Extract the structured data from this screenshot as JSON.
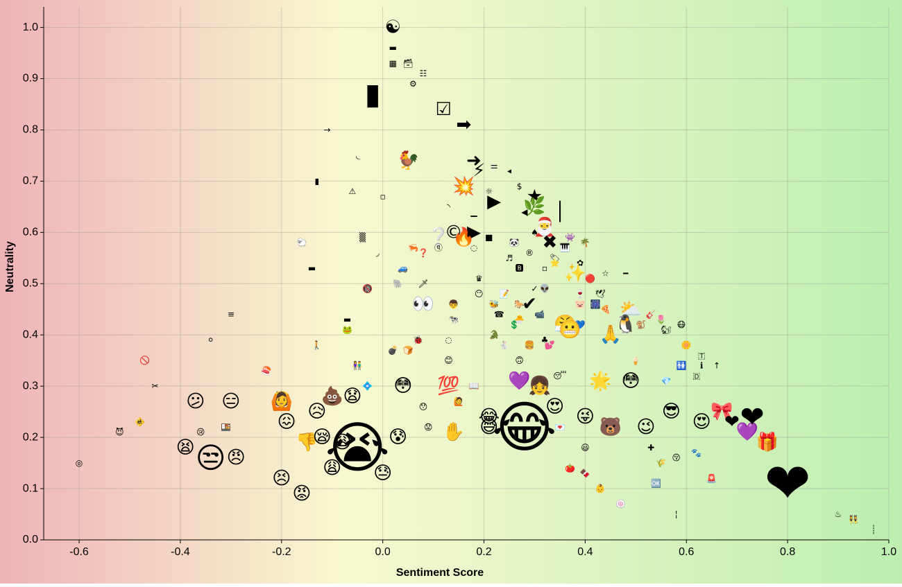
{
  "chart_data": {
    "type": "scatter",
    "title": "",
    "xlabel": "Sentiment Score",
    "ylabel": "Neutrality",
    "xlim": [
      -0.67,
      1.0
    ],
    "ylim": [
      0.0,
      1.04
    ],
    "xticks": [
      -0.6,
      -0.4,
      -0.2,
      0.0,
      0.2,
      0.4,
      0.6,
      0.8,
      1.0
    ],
    "xtick_labels": [
      "-0.6",
      "-0.4",
      "-0.2",
      "0.0",
      "0.2",
      "0.4",
      "0.6",
      "0.8",
      "1.0"
    ],
    "yticks": [
      0.0,
      0.1,
      0.2,
      0.3,
      0.4,
      0.5,
      0.6,
      0.7,
      0.8,
      0.9,
      1.0
    ],
    "ytick_labels": [
      "0.0",
      "0.1",
      "0.2",
      "0.3",
      "0.4",
      "0.5",
      "0.6",
      "0.7",
      "0.8",
      "0.9",
      "1.0"
    ],
    "grid": true,
    "legend": "none",
    "background_gradient": [
      "#efb3b8",
      "#f8f8d0",
      "#bdeeb0"
    ],
    "marker": "emoji, size proportional to usage frequency",
    "points": [
      {
        "x": 0.02,
        "y": 1.0,
        "emoji": "☯",
        "size": 2
      },
      {
        "x": 0.02,
        "y": 0.96,
        "emoji": "▬",
        "size": 1
      },
      {
        "x": 0.02,
        "y": 0.93,
        "emoji": "▦",
        "size": 1
      },
      {
        "x": 0.05,
        "y": 0.93,
        "emoji": "🗃",
        "size": 1
      },
      {
        "x": 0.08,
        "y": 0.91,
        "emoji": "☷",
        "size": 1
      },
      {
        "x": 0.06,
        "y": 0.89,
        "emoji": "⚙",
        "size": 1
      },
      {
        "x": -0.02,
        "y": 0.87,
        "emoji": "▮",
        "size": 3
      },
      {
        "x": 0.12,
        "y": 0.84,
        "emoji": "☑",
        "size": 2
      },
      {
        "x": 0.16,
        "y": 0.81,
        "emoji": "➡",
        "size": 2
      },
      {
        "x": -0.11,
        "y": 0.8,
        "emoji": "→",
        "size": 1
      },
      {
        "x": -0.05,
        "y": 0.75,
        "emoji": "◟",
        "size": 1
      },
      {
        "x": 0.05,
        "y": 0.74,
        "emoji": "🐓",
        "size": 2
      },
      {
        "x": 0.18,
        "y": 0.74,
        "emoji": "➜",
        "size": 2
      },
      {
        "x": 0.19,
        "y": 0.72,
        "emoji": "⚡",
        "size": 2
      },
      {
        "x": 0.22,
        "y": 0.73,
        "emoji": "⚌",
        "size": 1
      },
      {
        "x": 0.25,
        "y": 0.72,
        "emoji": "◂",
        "size": 1
      },
      {
        "x": -0.13,
        "y": 0.7,
        "emoji": "▮",
        "size": 1
      },
      {
        "x": 0.16,
        "y": 0.69,
        "emoji": "💥",
        "size": 2
      },
      {
        "x": 0.27,
        "y": 0.69,
        "emoji": "$",
        "size": 1
      },
      {
        "x": -0.06,
        "y": 0.68,
        "emoji": "⚠",
        "size": 1
      },
      {
        "x": 0.0,
        "y": 0.67,
        "emoji": "▫",
        "size": 1
      },
      {
        "x": 0.21,
        "y": 0.68,
        "emoji": "☼",
        "size": 1
      },
      {
        "x": 0.3,
        "y": 0.67,
        "emoji": "★",
        "size": 2
      },
      {
        "x": 0.22,
        "y": 0.66,
        "emoji": "▶",
        "size": 2
      },
      {
        "x": 0.3,
        "y": 0.65,
        "emoji": "🌿",
        "size": 2
      },
      {
        "x": 0.28,
        "y": 0.64,
        "emoji": "◀",
        "size": 1
      },
      {
        "x": 0.35,
        "y": 0.64,
        "emoji": "│",
        "size": 2
      },
      {
        "x": 0.13,
        "y": 0.65,
        "emoji": "◝",
        "size": 1
      },
      {
        "x": 0.18,
        "y": 0.64,
        "emoji": "▁",
        "size": 1
      },
      {
        "x": 0.14,
        "y": 0.6,
        "emoji": "©",
        "size": 2
      },
      {
        "x": 0.18,
        "y": 0.6,
        "emoji": "▶",
        "size": 2
      },
      {
        "x": 0.16,
        "y": 0.59,
        "emoji": "🔥",
        "size": 2
      },
      {
        "x": 0.11,
        "y": 0.59,
        "emoji": "❔",
        "size": 2
      },
      {
        "x": 0.21,
        "y": 0.59,
        "emoji": "■",
        "size": 1
      },
      {
        "x": 0.32,
        "y": 0.61,
        "emoji": "🎅",
        "size": 2
      },
      {
        "x": 0.3,
        "y": 0.6,
        "emoji": "♠",
        "size": 1
      },
      {
        "x": 0.33,
        "y": 0.58,
        "emoji": "✖",
        "size": 2
      },
      {
        "x": 0.37,
        "y": 0.59,
        "emoji": "👾",
        "size": 1
      },
      {
        "x": 0.4,
        "y": 0.58,
        "emoji": "🌴",
        "size": 1
      },
      {
        "x": 0.26,
        "y": 0.58,
        "emoji": "🐼",
        "size": 1
      },
      {
        "x": 0.29,
        "y": 0.56,
        "emoji": "®",
        "size": 1
      },
      {
        "x": 0.36,
        "y": 0.57,
        "emoji": "🎹",
        "size": 1
      },
      {
        "x": -0.16,
        "y": 0.58,
        "emoji": "🐑",
        "size": 1
      },
      {
        "x": -0.04,
        "y": 0.59,
        "emoji": "▒",
        "size": 1
      },
      {
        "x": -0.01,
        "y": 0.56,
        "emoji": "◞",
        "size": 1
      },
      {
        "x": 0.06,
        "y": 0.57,
        "emoji": "🦐",
        "size": 1
      },
      {
        "x": 0.08,
        "y": 0.56,
        "emoji": "❓",
        "size": 1
      },
      {
        "x": 0.11,
        "y": 0.57,
        "emoji": "ⓠ",
        "size": 1
      },
      {
        "x": 0.18,
        "y": 0.57,
        "emoji": "◌",
        "size": 1
      },
      {
        "x": 0.25,
        "y": 0.55,
        "emoji": "♬",
        "size": 1
      },
      {
        "x": 0.34,
        "y": 0.55,
        "emoji": "🏷",
        "size": 1
      },
      {
        "x": 0.34,
        "y": 0.54,
        "emoji": "⭐",
        "size": 1
      },
      {
        "x": 0.39,
        "y": 0.54,
        "emoji": "✿",
        "size": 1
      },
      {
        "x": 0.38,
        "y": 0.52,
        "emoji": "✨",
        "size": 2
      },
      {
        "x": 0.44,
        "y": 0.52,
        "emoji": "☆",
        "size": 1
      },
      {
        "x": 0.48,
        "y": 0.52,
        "emoji": "━",
        "size": 1
      },
      {
        "x": 0.27,
        "y": 0.53,
        "emoji": "🅱",
        "size": 1
      },
      {
        "x": 0.32,
        "y": 0.53,
        "emoji": "▫",
        "size": 1
      },
      {
        "x": 0.41,
        "y": 0.51,
        "emoji": "🔴",
        "size": 1
      },
      {
        "x": -0.14,
        "y": 0.53,
        "emoji": "▬",
        "size": 1
      },
      {
        "x": 0.04,
        "y": 0.53,
        "emoji": "🚙",
        "size": 1
      },
      {
        "x": -0.03,
        "y": 0.49,
        "emoji": "🔞",
        "size": 1
      },
      {
        "x": 0.03,
        "y": 0.5,
        "emoji": "🐘",
        "size": 1
      },
      {
        "x": 0.08,
        "y": 0.5,
        "emoji": "🗡",
        "size": 1
      },
      {
        "x": 0.19,
        "y": 0.51,
        "emoji": "♛",
        "size": 1
      },
      {
        "x": 0.24,
        "y": 0.48,
        "emoji": "📝",
        "size": 1
      },
      {
        "x": 0.3,
        "y": 0.49,
        "emoji": "✓",
        "size": 1
      },
      {
        "x": 0.32,
        "y": 0.49,
        "emoji": "👽",
        "size": 1
      },
      {
        "x": 0.39,
        "y": 0.48,
        "emoji": "🍷",
        "size": 1
      },
      {
        "x": 0.43,
        "y": 0.48,
        "emoji": "🕊",
        "size": 1
      },
      {
        "x": 0.19,
        "y": 0.48,
        "emoji": "😶",
        "size": 1
      },
      {
        "x": 0.22,
        "y": 0.46,
        "emoji": "🐝",
        "size": 1
      },
      {
        "x": 0.27,
        "y": 0.46,
        "emoji": "🐎",
        "size": 1
      },
      {
        "x": 0.29,
        "y": 0.46,
        "emoji": "✔",
        "size": 2
      },
      {
        "x": 0.39,
        "y": 0.46,
        "emoji": "🐷",
        "size": 1
      },
      {
        "x": 0.42,
        "y": 0.46,
        "emoji": "🎆",
        "size": 1
      },
      {
        "x": 0.44,
        "y": 0.45,
        "emoji": "🍕",
        "size": 1
      },
      {
        "x": 0.49,
        "y": 0.45,
        "emoji": "⛅",
        "size": 2
      },
      {
        "x": 0.08,
        "y": 0.46,
        "emoji": "👀",
        "size": 2
      },
      {
        "x": 0.14,
        "y": 0.46,
        "emoji": "👦",
        "size": 1
      },
      {
        "x": 0.23,
        "y": 0.44,
        "emoji": "☎",
        "size": 1
      },
      {
        "x": 0.27,
        "y": 0.43,
        "emoji": "🐣",
        "size": 1
      },
      {
        "x": 0.31,
        "y": 0.44,
        "emoji": "📹",
        "size": 1
      },
      {
        "x": -0.3,
        "y": 0.44,
        "emoji": "≡",
        "size": 1
      },
      {
        "x": -0.07,
        "y": 0.43,
        "emoji": "▬",
        "size": 1
      },
      {
        "x": 0.14,
        "y": 0.43,
        "emoji": "🐄",
        "size": 1
      },
      {
        "x": 0.26,
        "y": 0.42,
        "emoji": "💲",
        "size": 1
      },
      {
        "x": 0.36,
        "y": 0.42,
        "emoji": "😤",
        "size": 2
      },
      {
        "x": 0.39,
        "y": 0.42,
        "emoji": "💙",
        "size": 1
      },
      {
        "x": 0.48,
        "y": 0.42,
        "emoji": "🐧",
        "size": 2
      },
      {
        "x": 0.53,
        "y": 0.44,
        "emoji": "🎸",
        "size": 1
      },
      {
        "x": 0.55,
        "y": 0.43,
        "emoji": "🌷",
        "size": 1
      },
      {
        "x": -0.07,
        "y": 0.41,
        "emoji": "🐸",
        "size": 1
      },
      {
        "x": 0.07,
        "y": 0.39,
        "emoji": "🐞",
        "size": 1
      },
      {
        "x": 0.13,
        "y": 0.39,
        "emoji": "◌",
        "size": 1
      },
      {
        "x": 0.22,
        "y": 0.4,
        "emoji": "🐊",
        "size": 1
      },
      {
        "x": 0.32,
        "y": 0.39,
        "emoji": "♣",
        "size": 1
      },
      {
        "x": 0.37,
        "y": 0.41,
        "emoji": "😬",
        "size": 2
      },
      {
        "x": 0.45,
        "y": 0.4,
        "emoji": "🙏",
        "size": 2
      },
      {
        "x": 0.51,
        "y": 0.42,
        "emoji": "🐒",
        "size": 1
      },
      {
        "x": 0.59,
        "y": 0.42,
        "emoji": "😷",
        "size": 1
      },
      {
        "x": 0.56,
        "y": 0.41,
        "emoji": "🐿",
        "size": 1
      },
      {
        "x": -0.47,
        "y": 0.35,
        "emoji": "🚫",
        "size": 1
      },
      {
        "x": -0.34,
        "y": 0.39,
        "emoji": "⚪",
        "size": 1
      },
      {
        "x": -0.13,
        "y": 0.38,
        "emoji": "🚶",
        "size": 1
      },
      {
        "x": 0.02,
        "y": 0.37,
        "emoji": "💣",
        "size": 1
      },
      {
        "x": 0.05,
        "y": 0.37,
        "emoji": "🍞",
        "size": 1
      },
      {
        "x": 0.24,
        "y": 0.38,
        "emoji": "🐇",
        "size": 1
      },
      {
        "x": 0.29,
        "y": 0.38,
        "emoji": "🍔",
        "size": 1
      },
      {
        "x": 0.33,
        "y": 0.38,
        "emoji": "💕",
        "size": 1
      },
      {
        "x": 0.6,
        "y": 0.38,
        "emoji": "🌼",
        "size": 1
      },
      {
        "x": 0.63,
        "y": 0.36,
        "emoji": "🇹",
        "size": 1
      },
      {
        "x": 0.66,
        "y": 0.34,
        "emoji": "↑",
        "size": 1
      },
      {
        "x": -0.23,
        "y": 0.33,
        "emoji": "🍣",
        "size": 1
      },
      {
        "x": -0.05,
        "y": 0.34,
        "emoji": "👫",
        "size": 1
      },
      {
        "x": 0.13,
        "y": 0.35,
        "emoji": "😊",
        "size": 1
      },
      {
        "x": 0.27,
        "y": 0.35,
        "emoji": "🙃",
        "size": 1
      },
      {
        "x": 0.5,
        "y": 0.35,
        "emoji": "🍦",
        "size": 1
      },
      {
        "x": 0.59,
        "y": 0.34,
        "emoji": "🚻",
        "size": 1
      },
      {
        "x": 0.63,
        "y": 0.34,
        "emoji": "ℹ",
        "size": 1
      },
      {
        "x": -0.45,
        "y": 0.3,
        "emoji": "✂",
        "size": 1
      },
      {
        "x": 0.04,
        "y": 0.3,
        "emoji": "😳",
        "size": 2
      },
      {
        "x": 0.13,
        "y": 0.3,
        "emoji": "💯",
        "size": 2
      },
      {
        "x": 0.18,
        "y": 0.3,
        "emoji": "📖",
        "size": 1
      },
      {
        "x": 0.27,
        "y": 0.31,
        "emoji": "💜",
        "size": 2
      },
      {
        "x": 0.31,
        "y": 0.3,
        "emoji": "👧",
        "size": 2
      },
      {
        "x": 0.35,
        "y": 0.32,
        "emoji": "😴",
        "size": 1
      },
      {
        "x": 0.43,
        "y": 0.31,
        "emoji": "🌟",
        "size": 2
      },
      {
        "x": 0.49,
        "y": 0.31,
        "emoji": "😳",
        "size": 2
      },
      {
        "x": 0.56,
        "y": 0.31,
        "emoji": "💎",
        "size": 1
      },
      {
        "x": 0.62,
        "y": 0.32,
        "emoji": "🇩",
        "size": 1
      },
      {
        "x": -0.52,
        "y": 0.21,
        "emoji": "😈",
        "size": 1
      },
      {
        "x": -0.48,
        "y": 0.23,
        "emoji": "🚸",
        "size": 1
      },
      {
        "x": -0.6,
        "y": 0.15,
        "emoji": "◎",
        "size": 1
      },
      {
        "x": -0.37,
        "y": 0.27,
        "emoji": "😕",
        "size": 2
      },
      {
        "x": -0.3,
        "y": 0.27,
        "emoji": "😑",
        "size": 2
      },
      {
        "x": -0.2,
        "y": 0.27,
        "emoji": "🙆",
        "size": 2
      },
      {
        "x": -0.13,
        "y": 0.25,
        "emoji": "😥",
        "size": 2
      },
      {
        "x": -0.1,
        "y": 0.28,
        "emoji": "💩",
        "size": 2
      },
      {
        "x": -0.06,
        "y": 0.28,
        "emoji": "😧",
        "size": 2
      },
      {
        "x": -0.03,
        "y": 0.3,
        "emoji": "💠",
        "size": 1
      },
      {
        "x": 0.08,
        "y": 0.26,
        "emoji": "😯",
        "size": 1
      },
      {
        "x": 0.15,
        "y": 0.27,
        "emoji": "🙋",
        "size": 1
      },
      {
        "x": 0.21,
        "y": 0.24,
        "emoji": "😂",
        "size": 2
      },
      {
        "x": 0.28,
        "y": 0.22,
        "emoji": "😂",
        "size": 4
      },
      {
        "x": 0.34,
        "y": 0.26,
        "emoji": "😍",
        "size": 2
      },
      {
        "x": 0.4,
        "y": 0.24,
        "emoji": "😜",
        "size": 2
      },
      {
        "x": 0.45,
        "y": 0.22,
        "emoji": "🐻",
        "size": 2
      },
      {
        "x": 0.52,
        "y": 0.22,
        "emoji": "😉",
        "size": 2
      },
      {
        "x": 0.57,
        "y": 0.25,
        "emoji": "😎",
        "size": 2
      },
      {
        "x": 0.63,
        "y": 0.23,
        "emoji": "😍",
        "size": 2
      },
      {
        "x": 0.67,
        "y": 0.25,
        "emoji": "🎀",
        "size": 2
      },
      {
        "x": 0.69,
        "y": 0.23,
        "emoji": "❤",
        "size": 2
      },
      {
        "x": 0.72,
        "y": 0.21,
        "emoji": "💜",
        "size": 2
      },
      {
        "x": 0.73,
        "y": 0.24,
        "emoji": "❤",
        "size": 3
      },
      {
        "x": 0.76,
        "y": 0.19,
        "emoji": "🎁",
        "size": 2
      },
      {
        "x": 0.8,
        "y": 0.11,
        "emoji": "❤",
        "size": 4
      },
      {
        "x": -0.36,
        "y": 0.21,
        "emoji": "😢",
        "size": 1
      },
      {
        "x": -0.31,
        "y": 0.22,
        "emoji": "🍱",
        "size": 1
      },
      {
        "x": -0.19,
        "y": 0.23,
        "emoji": "😖",
        "size": 2
      },
      {
        "x": -0.15,
        "y": 0.19,
        "emoji": "👎",
        "size": 2
      },
      {
        "x": -0.12,
        "y": 0.2,
        "emoji": "😪",
        "size": 2
      },
      {
        "x": -0.08,
        "y": 0.19,
        "emoji": "😩",
        "size": 2
      },
      {
        "x": -0.05,
        "y": 0.18,
        "emoji": "😭",
        "size": 4
      },
      {
        "x": 0.03,
        "y": 0.2,
        "emoji": "😰",
        "size": 2
      },
      {
        "x": 0.09,
        "y": 0.22,
        "emoji": "😟",
        "size": 1
      },
      {
        "x": 0.14,
        "y": 0.21,
        "emoji": "✋",
        "size": 2
      },
      {
        "x": 0.21,
        "y": 0.22,
        "emoji": "😅",
        "size": 2
      },
      {
        "x": 0.35,
        "y": 0.22,
        "emoji": "💌",
        "size": 1
      },
      {
        "x": -0.39,
        "y": 0.18,
        "emoji": "😫",
        "size": 2
      },
      {
        "x": -0.34,
        "y": 0.16,
        "emoji": "😒",
        "size": 3
      },
      {
        "x": -0.29,
        "y": 0.16,
        "emoji": "😠",
        "size": 2
      },
      {
        "x": -0.2,
        "y": 0.12,
        "emoji": "😣",
        "size": 2
      },
      {
        "x": -0.16,
        "y": 0.09,
        "emoji": "😡",
        "size": 2
      },
      {
        "x": -0.1,
        "y": 0.14,
        "emoji": "😩",
        "size": 2
      },
      {
        "x": 0.0,
        "y": 0.13,
        "emoji": "😓",
        "size": 2
      },
      {
        "x": 0.4,
        "y": 0.18,
        "emoji": "😃",
        "size": 1
      },
      {
        "x": 0.53,
        "y": 0.18,
        "emoji": "✚",
        "size": 1
      },
      {
        "x": 0.58,
        "y": 0.16,
        "emoji": "😚",
        "size": 1
      },
      {
        "x": 0.62,
        "y": 0.17,
        "emoji": "🐾",
        "size": 1
      },
      {
        "x": 0.37,
        "y": 0.14,
        "emoji": "🍅",
        "size": 1
      },
      {
        "x": 0.4,
        "y": 0.13,
        "emoji": "🍫",
        "size": 1
      },
      {
        "x": 0.55,
        "y": 0.15,
        "emoji": "🌾",
        "size": 1
      },
      {
        "x": 0.43,
        "y": 0.1,
        "emoji": "👶",
        "size": 1
      },
      {
        "x": 0.47,
        "y": 0.07,
        "emoji": "🍥",
        "size": 1
      },
      {
        "x": 0.54,
        "y": 0.11,
        "emoji": "🆗",
        "size": 1
      },
      {
        "x": 0.65,
        "y": 0.12,
        "emoji": "🚨",
        "size": 1
      },
      {
        "x": 0.58,
        "y": 0.05,
        "emoji": "¦",
        "size": 1
      },
      {
        "x": 0.9,
        "y": 0.05,
        "emoji": "♨",
        "size": 1
      },
      {
        "x": 0.93,
        "y": 0.04,
        "emoji": "👯",
        "size": 1
      },
      {
        "x": 0.97,
        "y": 0.02,
        "emoji": "┊",
        "size": 1
      }
    ]
  }
}
